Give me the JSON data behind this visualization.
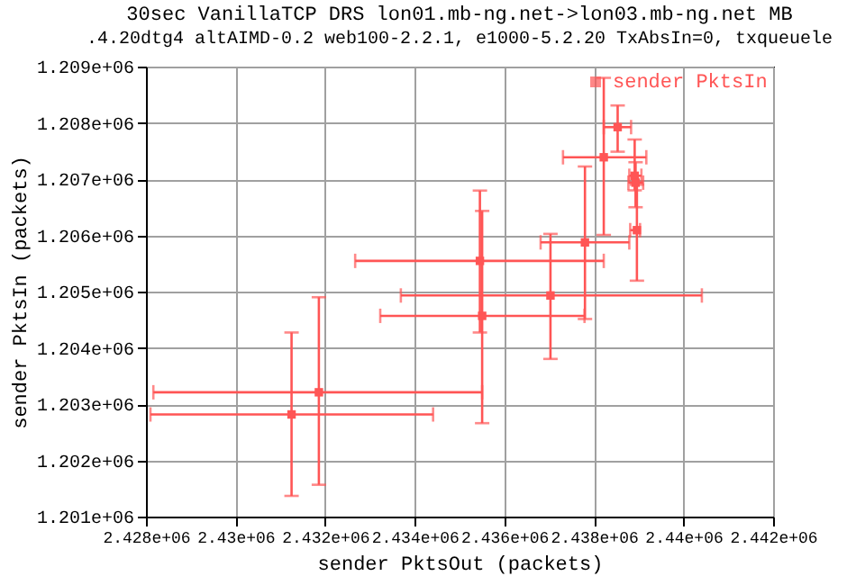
{
  "chart_data": {
    "type": "scatter",
    "title": "30sec VanillaTCP DRS lon01.mb-ng.net->lon03.mb-ng.net MB",
    "subtitle": ".4.20dtg4 altAIMD-0.2 web100-2.2.1, e1000-5.2.20 TxAbsIn=0, txqueuele",
    "xlabel": "sender PktsOut (packets)",
    "ylabel": "sender PktsIn (packets)",
    "x": [
      2431250,
      2431860,
      2435455,
      2435505,
      2437030,
      2437800,
      2438220,
      2438530,
      2438910,
      2438930,
      2438960
    ],
    "series": [
      {
        "name": "sender PktsIn",
        "color": "#ff5555",
        "values": [
          1202816,
          1203210,
          1205546,
          1204569,
          1204931,
          1205875,
          1207388,
          1207924,
          1207059,
          1206937,
          1206092
        ],
        "errors": [
          [
            1201368,
            1204273
          ],
          [
            1201566,
            1204900
          ],
          [
            1204273,
            1206796
          ],
          [
            1202661,
            1206434
          ],
          [
            1203803,
            1206026
          ],
          [
            1204513,
            1207224
          ],
          [
            1206007,
            1208800
          ],
          [
            1207487,
            1208309
          ],
          [
            1206800,
            1207704
          ],
          [
            1206500,
            1207300
          ],
          [
            1205194,
            1206900
          ]
        ],
        "xerrors": [
          [
            2428100,
            2434410
          ],
          [
            2428165,
            2435505
          ],
          [
            2432670,
            2438220
          ],
          [
            2433230,
            2437790
          ],
          [
            2433690,
            2440410
          ],
          [
            2436810,
            2438790
          ],
          [
            2437310,
            2439170
          ],
          [
            2438220,
            2438830
          ],
          [
            2438790,
            2439060
          ],
          [
            2438770,
            2439100
          ],
          [
            2438810,
            2439030
          ]
        ]
      }
    ],
    "xlim": [
      2428000,
      2442000
    ],
    "ylim": [
      1201000,
      1209000
    ],
    "xticks": [
      {
        "value": 2428000,
        "label": "2.428e+06"
      },
      {
        "value": 2430000,
        "label": "2.43e+06"
      },
      {
        "value": 2432000,
        "label": "2.432e+06"
      },
      {
        "value": 2434000,
        "label": "2.434e+06"
      },
      {
        "value": 2436000,
        "label": "2.436e+06"
      },
      {
        "value": 2438000,
        "label": "2.438e+06"
      },
      {
        "value": 2440000,
        "label": "2.44e+06"
      },
      {
        "value": 2442000,
        "label": "2.442e+06"
      }
    ],
    "yticks": [
      {
        "value": 1201000,
        "label": "1.201e+06"
      },
      {
        "value": 1202000,
        "label": "1.202e+06"
      },
      {
        "value": 1203000,
        "label": "1.203e+06"
      },
      {
        "value": 1204000,
        "label": "1.204e+06"
      },
      {
        "value": 1205000,
        "label": "1.205e+06"
      },
      {
        "value": 1206000,
        "label": "1.206e+06"
      },
      {
        "value": 1207000,
        "label": "1.207e+06"
      },
      {
        "value": 1208000,
        "label": "1.208e+06"
      },
      {
        "value": 1209000,
        "label": "1.209e+06"
      }
    ],
    "grid": true,
    "legend": "top right",
    "marker": "square"
  }
}
